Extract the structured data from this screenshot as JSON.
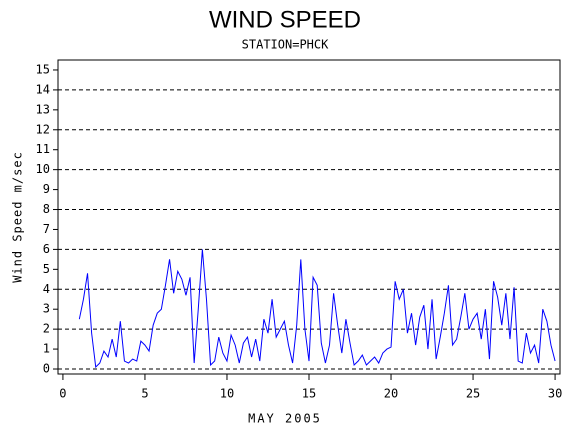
{
  "chart_data": {
    "type": "line",
    "title": "WIND SPEED",
    "subtitle": "STATION=PHCK",
    "x_label": "MAY 2005",
    "y_label": "Wind Speed m/sec",
    "color": "#0000ff",
    "x": [
      1,
      1.25,
      1.5,
      1.75,
      2,
      2.25,
      2.5,
      2.75,
      3,
      3.25,
      3.5,
      3.75,
      4,
      4.25,
      4.5,
      4.75,
      5,
      5.25,
      5.5,
      5.75,
      6,
      6.25,
      6.5,
      6.75,
      7,
      7.25,
      7.5,
      7.75,
      8,
      8.25,
      8.5,
      8.75,
      9,
      9.25,
      9.5,
      9.75,
      10,
      10.25,
      10.5,
      10.75,
      11,
      11.25,
      11.5,
      11.75,
      12,
      12.25,
      12.5,
      12.75,
      13,
      13.25,
      13.5,
      13.75,
      14,
      14.25,
      14.5,
      14.75,
      15,
      15.25,
      15.5,
      15.75,
      16,
      16.25,
      16.5,
      16.75,
      17,
      17.25,
      17.5,
      17.75,
      18,
      18.25,
      18.5,
      18.75,
      19,
      19.25,
      19.5,
      19.75,
      20,
      20.25,
      20.5,
      20.75,
      21,
      21.25,
      21.5,
      21.75,
      22,
      22.25,
      22.5,
      22.75,
      23,
      23.25,
      23.5,
      23.75,
      24,
      24.25,
      24.5,
      24.75,
      25,
      25.25,
      25.5,
      25.75,
      26,
      26.25,
      26.5,
      26.75,
      27,
      27.25,
      27.5,
      27.75,
      28,
      28.25,
      28.5,
      28.75,
      29,
      29.25,
      29.5,
      29.75,
      30
    ],
    "values": [
      2.5,
      3.5,
      4.8,
      1.8,
      0.1,
      0.3,
      0.9,
      0.6,
      1.5,
      0.6,
      2.4,
      0.4,
      0.3,
      0.5,
      0.4,
      1.4,
      1.2,
      0.9,
      2.2,
      2.8,
      3.0,
      4.2,
      5.5,
      3.8,
      4.9,
      4.5,
      3.7,
      4.6,
      0.3,
      3.0,
      6.0,
      3.5,
      0.2,
      0.4,
      1.6,
      0.8,
      0.4,
      1.7,
      1.2,
      0.3,
      1.3,
      1.6,
      0.6,
      1.5,
      0.4,
      2.5,
      1.8,
      3.5,
      1.6,
      2.0,
      2.4,
      1.2,
      0.3,
      2.2,
      5.5,
      2.0,
      0.4,
      4.6,
      4.2,
      1.3,
      0.3,
      1.2,
      3.8,
      2.2,
      0.8,
      2.5,
      1.3,
      0.2,
      0.4,
      0.7,
      0.2,
      0.4,
      0.6,
      0.3,
      0.8,
      1.0,
      1.1,
      4.4,
      3.5,
      4.0,
      1.8,
      2.8,
      1.2,
      2.6,
      3.2,
      1.0,
      3.5,
      0.5,
      1.6,
      2.8,
      4.2,
      1.2,
      1.5,
      2.6,
      3.8,
      2.0,
      2.5,
      2.8,
      1.5,
      3.0,
      0.5,
      4.4,
      3.6,
      2.2,
      3.8,
      1.5,
      4.1,
      0.4,
      0.3,
      1.8,
      0.8,
      1.2,
      0.3,
      3.0,
      2.4,
      1.2,
      0.4
    ],
    "xlim": [
      -0.3,
      30.3
    ],
    "xticks": [
      0,
      5,
      10,
      15,
      20,
      25,
      30
    ],
    "ylim": [
      -0.25,
      15.5
    ],
    "yticks": [
      0,
      1,
      2,
      3,
      4,
      5,
      6,
      7,
      8,
      9,
      10,
      11,
      12,
      13,
      14,
      15
    ],
    "ygrid": [
      0,
      2,
      4,
      6,
      8,
      10,
      12,
      14
    ]
  }
}
